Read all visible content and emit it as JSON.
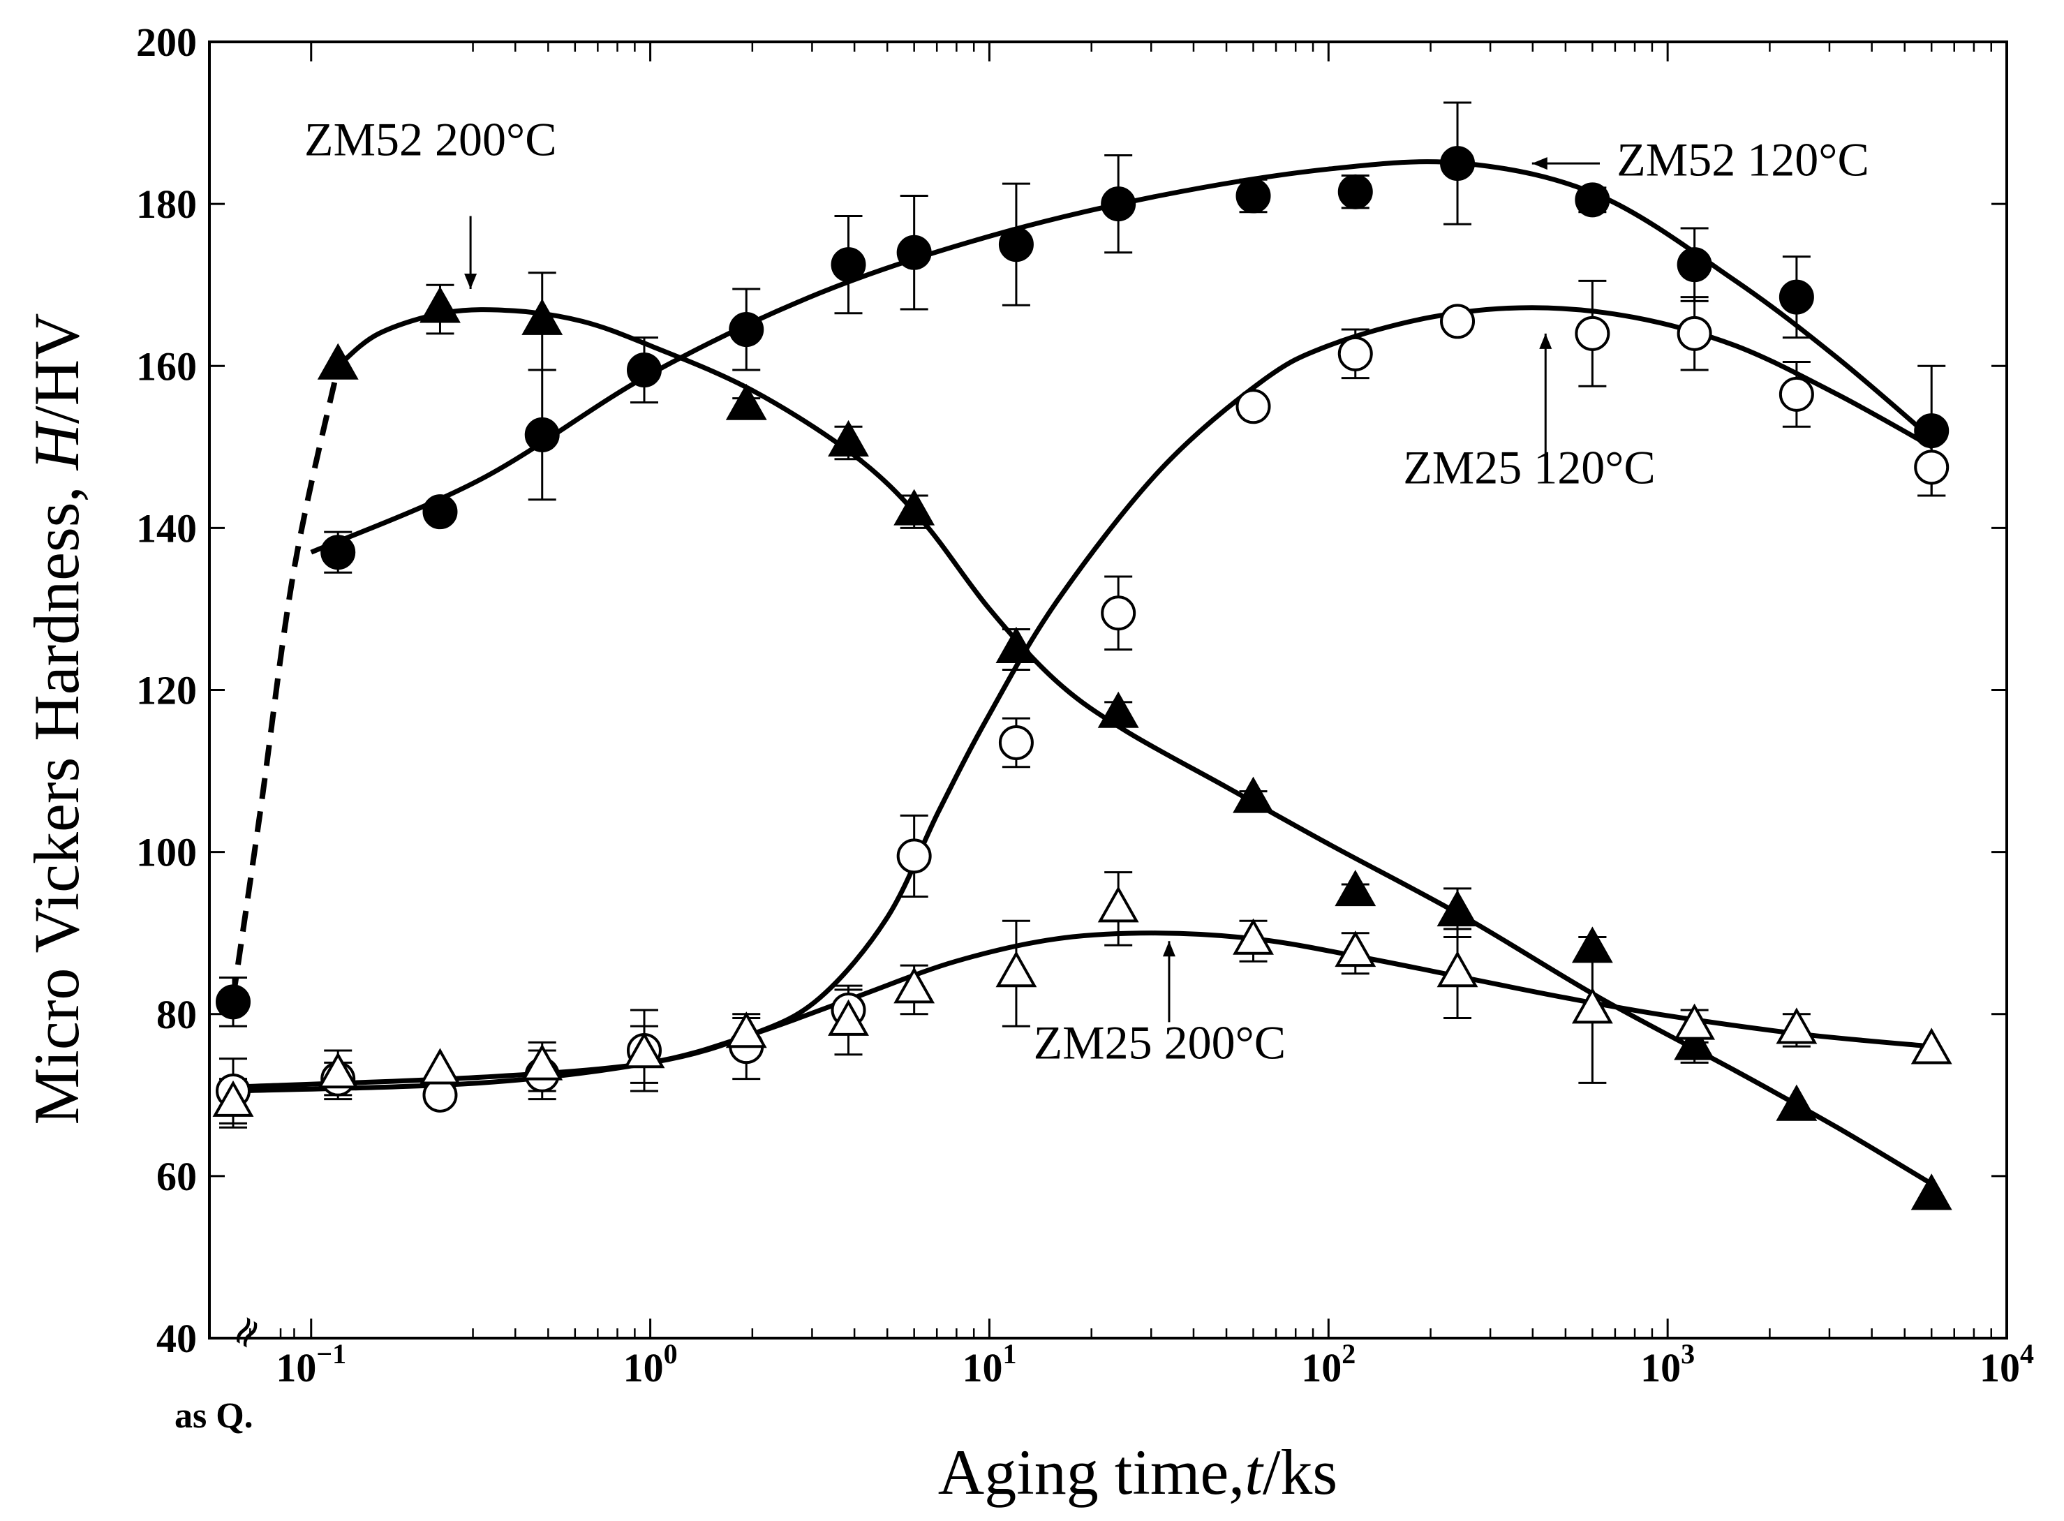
{
  "chart_data": {
    "type": "scatter",
    "title": "",
    "xlabel": "Aging time,t/ks",
    "xlabel_parts": [
      "Aging time,",
      "t",
      "/ks"
    ],
    "ylabel": "Micro Vickers Hardness, H/HV",
    "ylabel_parts": [
      "Micro Vickers Hardness, ",
      "H",
      "/HV"
    ],
    "xscale": "log",
    "xlim_log10": [
      -1.3,
      4
    ],
    "ylim": [
      40,
      200
    ],
    "x_ticks": [
      {
        "exp": -1,
        "base": "10",
        "sup": "−1"
      },
      {
        "exp": 0,
        "base": "10",
        "sup": "0"
      },
      {
        "exp": 1,
        "base": "10",
        "sup": "1"
      },
      {
        "exp": 2,
        "base": "10",
        "sup": "2"
      },
      {
        "exp": 3,
        "base": "10",
        "sup": "3"
      },
      {
        "exp": 4,
        "base": "10",
        "sup": "4"
      }
    ],
    "y_ticks": [
      40,
      60,
      80,
      100,
      120,
      140,
      160,
      180,
      200
    ],
    "as_quenched_label": "as Q.",
    "axis_break_glyph": "≈",
    "as_quenched_log10": -1.23,
    "series": [
      {
        "name": "ZM52 120°C",
        "marker": "circle",
        "filled": true,
        "points": [
          {
            "x": "asQ",
            "y": 81.5,
            "err": 3
          },
          {
            "x": 0.12,
            "y": 137,
            "err": 2.5
          },
          {
            "x": 0.24,
            "y": 142,
            "err": 1
          },
          {
            "x": 0.48,
            "y": 151.5,
            "err": 8
          },
          {
            "x": 0.96,
            "y": 159.5,
            "err": 4
          },
          {
            "x": 1.92,
            "y": 164.5,
            "err": 5
          },
          {
            "x": 3.84,
            "y": 172.5,
            "err": 6
          },
          {
            "x": 6,
            "y": 174,
            "err": 7
          },
          {
            "x": 12,
            "y": 175,
            "err": 7.5
          },
          {
            "x": 24,
            "y": 180,
            "err": 6
          },
          {
            "x": 60,
            "y": 181,
            "err": 2
          },
          {
            "x": 120,
            "y": 181.5,
            "err": 2
          },
          {
            "x": 240,
            "y": 185,
            "err": 7.5
          },
          {
            "x": 600,
            "y": 180.5,
            "err": 1.5
          },
          {
            "x": 1200,
            "y": 172.5,
            "err": 4.5
          },
          {
            "x": 2400,
            "y": 168.5,
            "err": 5
          },
          {
            "x": 6000,
            "y": 152,
            "err": 8
          }
        ],
        "curve": [
          [
            -1.0,
            137
          ],
          [
            -0.5,
            146
          ],
          [
            0,
            159
          ],
          [
            0.5,
            169
          ],
          [
            1,
            176
          ],
          [
            1.5,
            181
          ],
          [
            2,
            184.3
          ],
          [
            2.4,
            185
          ],
          [
            2.8,
            181
          ],
          [
            3.2,
            170.5
          ],
          [
            3.5,
            161
          ],
          [
            3.78,
            151
          ]
        ]
      },
      {
        "name": "ZM52 200°C",
        "marker": "triangle",
        "filled": true,
        "points": [
          {
            "x": 0.12,
            "y": 160,
            "err": 0
          },
          {
            "x": 0.24,
            "y": 167,
            "err": 3
          },
          {
            "x": 0.48,
            "y": 165.5,
            "err": 6
          },
          {
            "x": 1.92,
            "y": 155,
            "err": 1
          },
          {
            "x": 3.84,
            "y": 150.5,
            "err": 2
          },
          {
            "x": 6,
            "y": 142,
            "err": 2
          },
          {
            "x": 12,
            "y": 125,
            "err": 2.5
          },
          {
            "x": 24,
            "y": 117,
            "err": 1.5
          },
          {
            "x": 60,
            "y": 106.5,
            "err": 1
          },
          {
            "x": 120,
            "y": 95,
            "err": 1
          },
          {
            "x": 240,
            "y": 92.5,
            "err": 3
          },
          {
            "x": 600,
            "y": 88,
            "err": 1.5
          },
          {
            "x": 1200,
            "y": 76,
            "err": 2
          },
          {
            "x": 2400,
            "y": 68.5,
            "err": 0
          },
          {
            "x": 6000,
            "y": 57.5,
            "err": 0
          }
        ],
        "curve": [
          [
            -0.92,
            160
          ],
          [
            -0.8,
            164
          ],
          [
            -0.6,
            166.6
          ],
          [
            -0.4,
            166.8
          ],
          [
            -0.2,
            165.5
          ],
          [
            0,
            162.5
          ],
          [
            0.3,
            157
          ],
          [
            0.6,
            149
          ],
          [
            0.8,
            141
          ],
          [
            1,
            130
          ],
          [
            1.2,
            121
          ],
          [
            1.4,
            115
          ],
          [
            1.7,
            108
          ],
          [
            2,
            101
          ],
          [
            2.4,
            92
          ],
          [
            2.8,
            82
          ],
          [
            3.2,
            73
          ],
          [
            3.5,
            66
          ],
          [
            3.78,
            59
          ]
        ],
        "dashed_curve": [
          [
            -1.23,
            82
          ],
          [
            -1.15,
            105
          ],
          [
            -1.05,
            135
          ],
          [
            -0.92,
            160
          ]
        ]
      },
      {
        "name": "ZM25 120°C",
        "marker": "circle",
        "filled": false,
        "points": [
          {
            "x": "asQ",
            "y": 70.5,
            "err": 4
          },
          {
            "x": 0.12,
            "y": 72,
            "err": 2
          },
          {
            "x": 0.24,
            "y": 70,
            "err": 1
          },
          {
            "x": 0.48,
            "y": 72.5,
            "err": 3
          },
          {
            "x": 0.96,
            "y": 75.5,
            "err": 5
          },
          {
            "x": 1.92,
            "y": 76,
            "err": 4
          },
          {
            "x": 3.84,
            "y": 80.5,
            "err": 3
          },
          {
            "x": 6,
            "y": 99.5,
            "err": 5
          },
          {
            "x": 12,
            "y": 113.5,
            "err": 3
          },
          {
            "x": 24,
            "y": 129.5,
            "err": 4.5
          },
          {
            "x": 60,
            "y": 155,
            "err": 0
          },
          {
            "x": 120,
            "y": 161.5,
            "err": 3
          },
          {
            "x": 240,
            "y": 165.5,
            "err": 0
          },
          {
            "x": 600,
            "y": 164,
            "err": 6.5
          },
          {
            "x": 1200,
            "y": 164,
            "err": 4.5
          },
          {
            "x": 2400,
            "y": 156.5,
            "err": 4
          },
          {
            "x": 6000,
            "y": 147.5,
            "err": 3.5
          }
        ],
        "curve": [
          [
            -1.23,
            71
          ],
          [
            -0.5,
            72.2
          ],
          [
            0,
            74
          ],
          [
            0.3,
            77.5
          ],
          [
            0.5,
            82
          ],
          [
            0.7,
            92
          ],
          [
            0.85,
            105
          ],
          [
            1,
            117
          ],
          [
            1.2,
            131
          ],
          [
            1.5,
            147
          ],
          [
            1.8,
            158
          ],
          [
            2,
            162.5
          ],
          [
            2.3,
            166
          ],
          [
            2.6,
            167.2
          ],
          [
            2.9,
            166
          ],
          [
            3.2,
            162.5
          ],
          [
            3.5,
            156.5
          ],
          [
            3.78,
            150
          ]
        ]
      },
      {
        "name": "ZM25 200°C",
        "marker": "triangle",
        "filled": false,
        "points": [
          {
            "x": "asQ",
            "y": 69,
            "err": 3
          },
          {
            "x": 0.12,
            "y": 72.5,
            "err": 3
          },
          {
            "x": 0.24,
            "y": 73,
            "err": 0
          },
          {
            "x": 0.48,
            "y": 73.5,
            "err": 3
          },
          {
            "x": 0.96,
            "y": 75,
            "err": 3.5
          },
          {
            "x": 1.92,
            "y": 77.5,
            "err": 2
          },
          {
            "x": 3.84,
            "y": 79,
            "err": 4
          },
          {
            "x": 6,
            "y": 83,
            "err": 3
          },
          {
            "x": 12,
            "y": 85,
            "err": 6.5
          },
          {
            "x": 24,
            "y": 93,
            "err": 4.5
          },
          {
            "x": 60,
            "y": 89,
            "err": 2.5
          },
          {
            "x": 120,
            "y": 87.5,
            "err": 2.5
          },
          {
            "x": 240,
            "y": 85,
            "err": 5.5
          },
          {
            "x": 600,
            "y": 80.5,
            "err": 9
          },
          {
            "x": 1200,
            "y": 78.5,
            "err": 2
          },
          {
            "x": 2400,
            "y": 78,
            "err": 2
          },
          {
            "x": 6000,
            "y": 75.5,
            "err": 0
          }
        ],
        "curve": [
          [
            -1.23,
            70.5
          ],
          [
            -0.5,
            71.5
          ],
          [
            0,
            74
          ],
          [
            0.3,
            77.5
          ],
          [
            0.6,
            82
          ],
          [
            0.9,
            86.5
          ],
          [
            1.2,
            89.3
          ],
          [
            1.5,
            90
          ],
          [
            1.8,
            89.2
          ],
          [
            2.1,
            87
          ],
          [
            2.4,
            84.5
          ],
          [
            2.7,
            82
          ],
          [
            3,
            79.8
          ],
          [
            3.4,
            77.5
          ],
          [
            3.78,
            76
          ]
        ]
      }
    ],
    "annotations": [
      {
        "text": "ZM52 200°C",
        "tx": -1.02,
        "ty": 186,
        "ax": -0.53,
        "ay1": 178.5,
        "ay2": 169.5
      },
      {
        "text": "ZM52 120°C",
        "tx": 2.85,
        "ty": 183.5,
        "ax1": 2.8,
        "ax2": 2.6,
        "ay": 185
      },
      {
        "text": "ZM25 120°C",
        "tx": 2.22,
        "ty": 145.5,
        "ax": 2.64,
        "ay1": 149,
        "ay2": 164
      },
      {
        "text": "ZM25 200°C",
        "tx": 1.13,
        "ty": 74.5,
        "ax": 1.53,
        "ay1": 79,
        "ay2": 89
      }
    ]
  }
}
